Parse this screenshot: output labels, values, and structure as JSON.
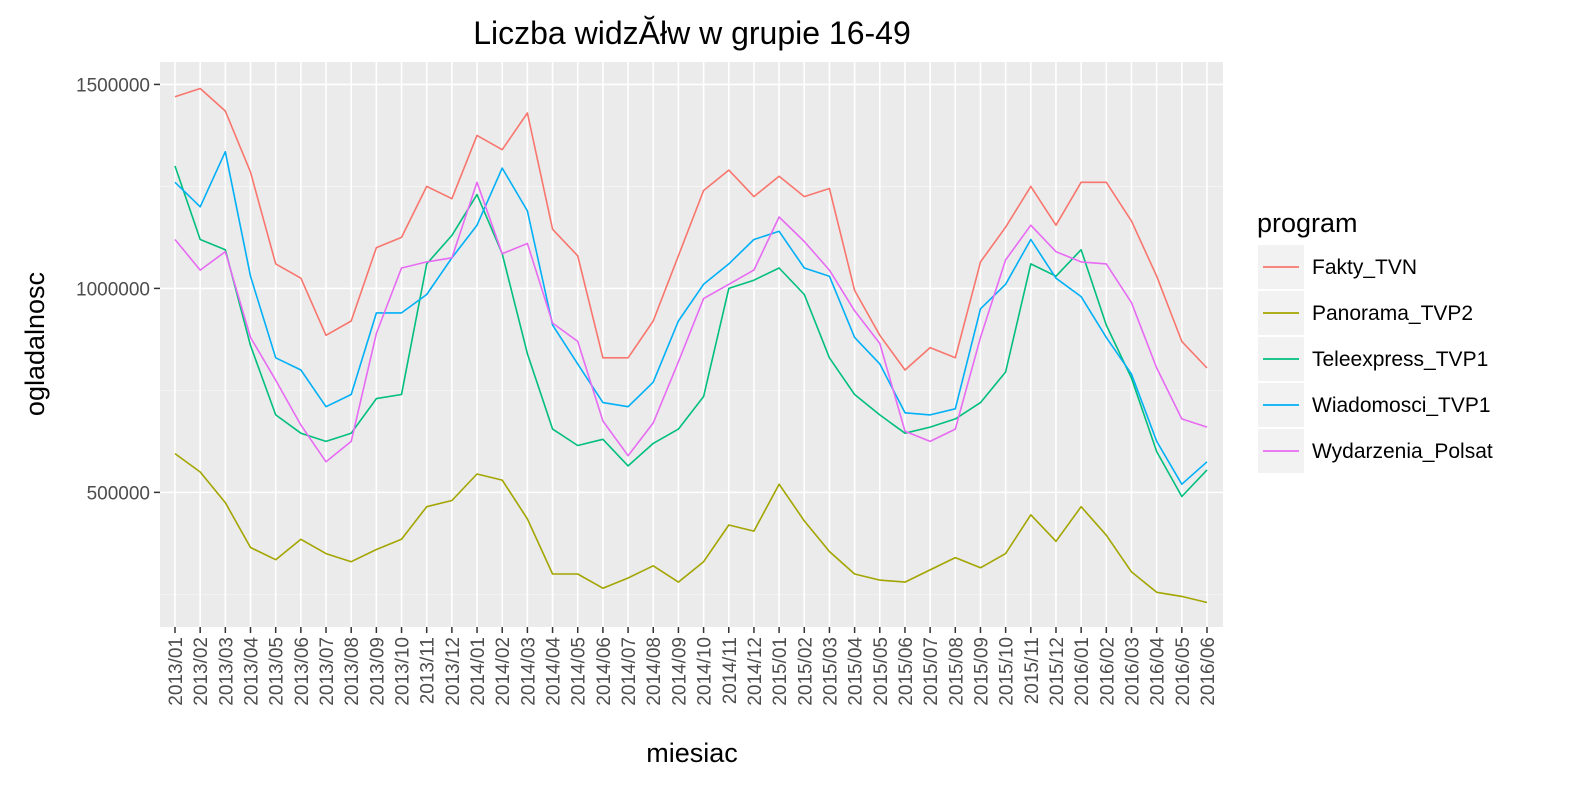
{
  "chart_data": {
    "type": "line",
    "title": "Liczba widzĂłw w grupie 16-49",
    "xlabel": "miesiac",
    "ylabel": "ogladalnosc",
    "categories": [
      "2013/01",
      "2013/02",
      "2013/03",
      "2013/04",
      "2013/05",
      "2013/06",
      "2013/07",
      "2013/08",
      "2013/09",
      "2013/10",
      "2013/11",
      "2013/12",
      "2014/01",
      "2014/02",
      "2014/03",
      "2014/04",
      "2014/05",
      "2014/06",
      "2014/07",
      "2014/08",
      "2014/09",
      "2014/10",
      "2014/11",
      "2014/12",
      "2015/01",
      "2015/02",
      "2015/03",
      "2015/04",
      "2015/05",
      "2015/06",
      "2015/07",
      "2015/08",
      "2015/09",
      "2015/10",
      "2015/11",
      "2015/12",
      "2016/01",
      "2016/02",
      "2016/03",
      "2016/04",
      "2016/05",
      "2016/06"
    ],
    "y_ticks": [
      500000,
      1000000,
      1500000
    ],
    "y_tick_labels": [
      "500000",
      "1000000",
      "1500000"
    ],
    "ylim": [
      170000,
      1555000
    ],
    "grid": true,
    "legend_position": "right",
    "legend_title": "program",
    "series": [
      {
        "name": "Fakty_TVN",
        "color": "#F8766D",
        "values": [
          1470000,
          1490000,
          1435000,
          1285000,
          1060000,
          1025000,
          885000,
          920000,
          1100000,
          1125000,
          1250000,
          1220000,
          1375000,
          1340000,
          1430000,
          1145000,
          1080000,
          830000,
          830000,
          920000,
          1080000,
          1240000,
          1290000,
          1225000,
          1275000,
          1225000,
          1245000,
          995000,
          885000,
          800000,
          855000,
          830000,
          1065000,
          1150000,
          1250000,
          1155000,
          1260000,
          1260000,
          1165000,
          1030000,
          870000,
          805000
        ]
      },
      {
        "name": "Panorama_TVP2",
        "color": "#A3A500",
        "values": [
          595000,
          550000,
          475000,
          365000,
          335000,
          385000,
          350000,
          330000,
          360000,
          385000,
          465000,
          480000,
          545000,
          530000,
          435000,
          300000,
          300000,
          265000,
          290000,
          320000,
          280000,
          330000,
          420000,
          405000,
          520000,
          430000,
          355000,
          300000,
          285000,
          280000,
          310000,
          340000,
          315000,
          350000,
          445000,
          380000,
          465000,
          395000,
          305000,
          255000,
          245000,
          230000
        ]
      },
      {
        "name": "Teleexpress_TVP1",
        "color": "#00BF7D",
        "values": [
          1300000,
          1120000,
          1095000,
          860000,
          690000,
          645000,
          625000,
          645000,
          730000,
          740000,
          1060000,
          1130000,
          1230000,
          1085000,
          840000,
          655000,
          615000,
          630000,
          565000,
          620000,
          655000,
          735000,
          1000000,
          1020000,
          1050000,
          985000,
          830000,
          740000,
          690000,
          645000,
          660000,
          680000,
          720000,
          795000,
          1060000,
          1030000,
          1095000,
          910000,
          780000,
          600000,
          490000,
          555000
        ]
      },
      {
        "name": "Wiadomosci_TVP1",
        "color": "#00B0F6",
        "values": [
          1260000,
          1200000,
          1335000,
          1030000,
          830000,
          800000,
          710000,
          740000,
          940000,
          940000,
          985000,
          1075000,
          1155000,
          1295000,
          1190000,
          910000,
          815000,
          720000,
          710000,
          770000,
          920000,
          1010000,
          1060000,
          1120000,
          1140000,
          1050000,
          1030000,
          880000,
          815000,
          695000,
          690000,
          705000,
          950000,
          1010000,
          1120000,
          1025000,
          980000,
          880000,
          790000,
          625000,
          520000,
          575000
        ]
      },
      {
        "name": "Wydarzenia_Polsat",
        "color": "#E76BF3",
        "values": [
          1120000,
          1045000,
          1090000,
          880000,
          775000,
          665000,
          575000,
          625000,
          890000,
          1050000,
          1065000,
          1075000,
          1260000,
          1085000,
          1110000,
          915000,
          870000,
          675000,
          590000,
          670000,
          820000,
          975000,
          1010000,
          1045000,
          1175000,
          1115000,
          1045000,
          945000,
          865000,
          650000,
          625000,
          655000,
          880000,
          1070000,
          1155000,
          1090000,
          1065000,
          1060000,
          965000,
          805000,
          680000,
          660000
        ]
      }
    ]
  }
}
